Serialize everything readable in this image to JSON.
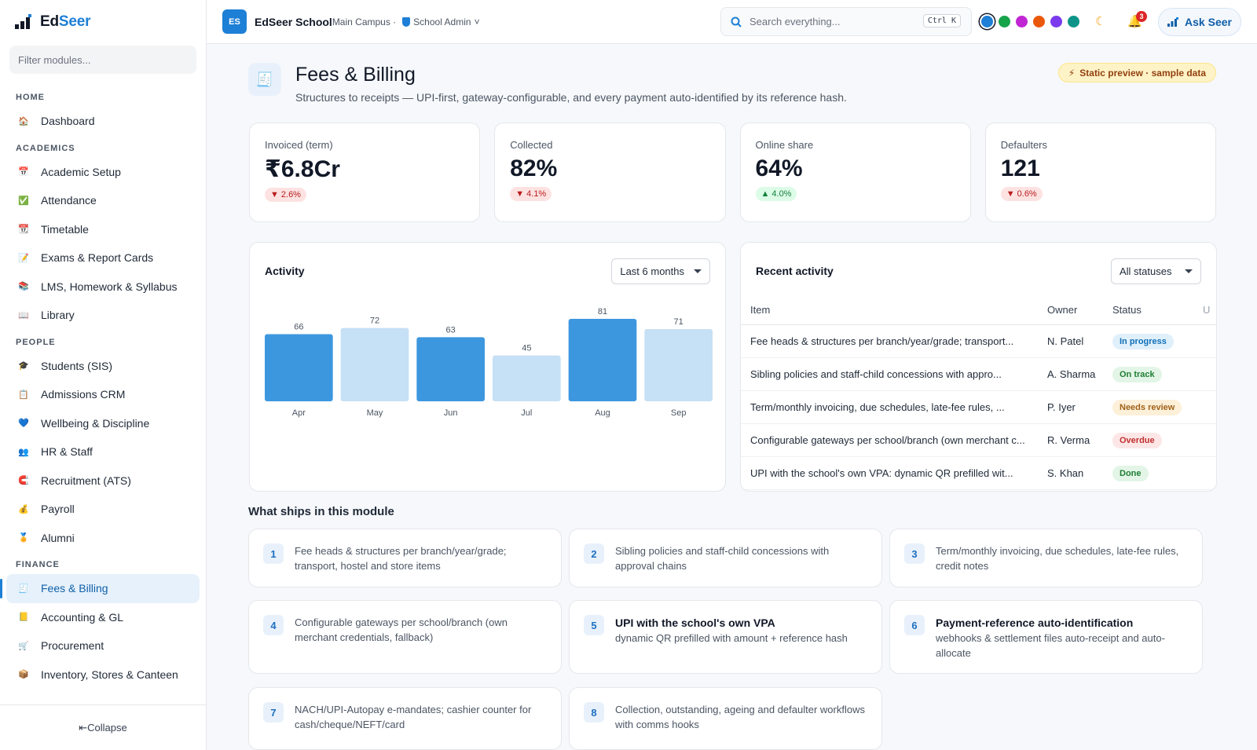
{
  "brand": {
    "name_main": "Ed",
    "name_accent": "Seer"
  },
  "sidebar": {
    "filter_placeholder": "Filter modules...",
    "sections": [
      {
        "label": "HOME",
        "items": [
          {
            "label": "Dashboard",
            "icon": "house-icon"
          }
        ]
      },
      {
        "label": "ACADEMICS",
        "items": [
          {
            "label": "Academic Setup",
            "icon": "calendar-icon"
          },
          {
            "label": "Attendance",
            "icon": "checkbox-icon"
          },
          {
            "label": "Timetable",
            "icon": "calendar-grid-icon"
          },
          {
            "label": "Exams & Report Cards",
            "icon": "report-icon"
          },
          {
            "label": "LMS, Homework & Syllabus",
            "icon": "books-icon"
          },
          {
            "label": "Library",
            "icon": "open-book-icon"
          }
        ]
      },
      {
        "label": "PEOPLE",
        "items": [
          {
            "label": "Students (SIS)",
            "icon": "graduation-cap-icon"
          },
          {
            "label": "Admissions CRM",
            "icon": "clipboard-icon"
          },
          {
            "label": "Wellbeing & Discipline",
            "icon": "heart-icon"
          },
          {
            "label": "HR & Staff",
            "icon": "people-icon"
          },
          {
            "label": "Recruitment (ATS)",
            "icon": "magnet-icon"
          },
          {
            "label": "Payroll",
            "icon": "money-bag-icon"
          },
          {
            "label": "Alumni",
            "icon": "medal-icon"
          }
        ]
      },
      {
        "label": "FINANCE",
        "items": [
          {
            "label": "Fees & Billing",
            "icon": "receipt-icon",
            "active": true
          },
          {
            "label": "Accounting & GL",
            "icon": "ledger-icon"
          },
          {
            "label": "Procurement",
            "icon": "cart-icon"
          },
          {
            "label": "Inventory, Stores & Canteen",
            "icon": "box-icon"
          }
        ]
      }
    ],
    "collapse_label": "⇤Collapse"
  },
  "topbar": {
    "badge": "ES",
    "school_name": "EdSeer School",
    "campus": "Main Campus ·",
    "role": "School Admin",
    "search_placeholder": "Search everything...",
    "shortcut": "Ctrl K",
    "theme_colors": [
      "#1d7fd6",
      "#16a34a",
      "#c026d3",
      "#ea580c",
      "#7c3aed",
      "#0d9488"
    ],
    "notifications": "3",
    "ask_label": "Ask Seer"
  },
  "page": {
    "title": "Fees & Billing",
    "subtitle": "Structures to receipts — UPI-first, gateway-configurable, and every payment auto-identified by its reference hash.",
    "preview_badge": "Static preview · sample data"
  },
  "kpis": [
    {
      "label": "Invoiced (term)",
      "value": "₹6.8Cr",
      "delta": "2.6%",
      "direction": "down"
    },
    {
      "label": "Collected",
      "value": "82%",
      "delta": "4.1%",
      "direction": "down"
    },
    {
      "label": "Online share",
      "value": "64%",
      "delta": "4.0%",
      "direction": "up"
    },
    {
      "label": "Defaulters",
      "value": "121",
      "delta": "0.6%",
      "direction": "down"
    }
  ],
  "activity": {
    "title": "Activity",
    "range": "Last 6 months"
  },
  "chart_data": {
    "type": "bar",
    "categories": [
      "Apr",
      "May",
      "Jun",
      "Jul",
      "Aug",
      "Sep"
    ],
    "values": [
      66,
      72,
      63,
      45,
      81,
      71
    ],
    "colors": [
      "#3d97df",
      "#c6e0f5",
      "#3d97df",
      "#c6e0f5",
      "#3d97df",
      "#c6e0f5"
    ],
    "ylim": [
      0,
      81
    ],
    "grid": false,
    "legend": "none"
  },
  "recent": {
    "title": "Recent activity",
    "filter": "All statuses",
    "columns": [
      "Item",
      "Owner",
      "Status",
      "U"
    ],
    "rows": [
      {
        "item": "Fee heads & structures per branch/year/grade; transport...",
        "owner": "N. Patel",
        "status": "In progress",
        "tone": "st-blue"
      },
      {
        "item": "Sibling policies and staff-child concessions with appro...",
        "owner": "A. Sharma",
        "status": "On track",
        "tone": "st-green"
      },
      {
        "item": "Term/monthly invoicing, due schedules, late-fee rules, ...",
        "owner": "P. Iyer",
        "status": "Needs review",
        "tone": "st-amber"
      },
      {
        "item": "Configurable gateways per school/branch (own merchant c...",
        "owner": "R. Verma",
        "status": "Overdue",
        "tone": "st-red"
      },
      {
        "item": "UPI with the school's own VPA: dynamic QR prefilled wit...",
        "owner": "S. Khan",
        "status": "Done",
        "tone": "st-green"
      }
    ]
  },
  "ships": {
    "title": "What ships in this module",
    "features": [
      {
        "n": "1",
        "title": "",
        "text": "Fee heads & structures per branch/year/grade; transport, hostel and store items"
      },
      {
        "n": "2",
        "title": "",
        "text": "Sibling policies and staff-child concessions with approval chains"
      },
      {
        "n": "3",
        "title": "",
        "text": "Term/monthly invoicing, due schedules, late-fee rules, credit notes"
      },
      {
        "n": "4",
        "title": "",
        "text": "Configurable gateways per school/branch (own merchant credentials, fallback)"
      },
      {
        "n": "5",
        "title": "UPI with the school's own VPA",
        "text": "dynamic QR prefilled with amount + reference hash"
      },
      {
        "n": "6",
        "title": "Payment-reference auto-identification",
        "text": "webhooks & settlement files auto-receipt and auto-allocate"
      },
      {
        "n": "7",
        "title": "",
        "text": "NACH/UPI-Autopay e-mandates; cashier counter for cash/cheque/NEFT/card"
      },
      {
        "n": "8",
        "title": "",
        "text": "Collection, outstanding, ageing and defaulter workflows with comms hooks"
      }
    ]
  }
}
